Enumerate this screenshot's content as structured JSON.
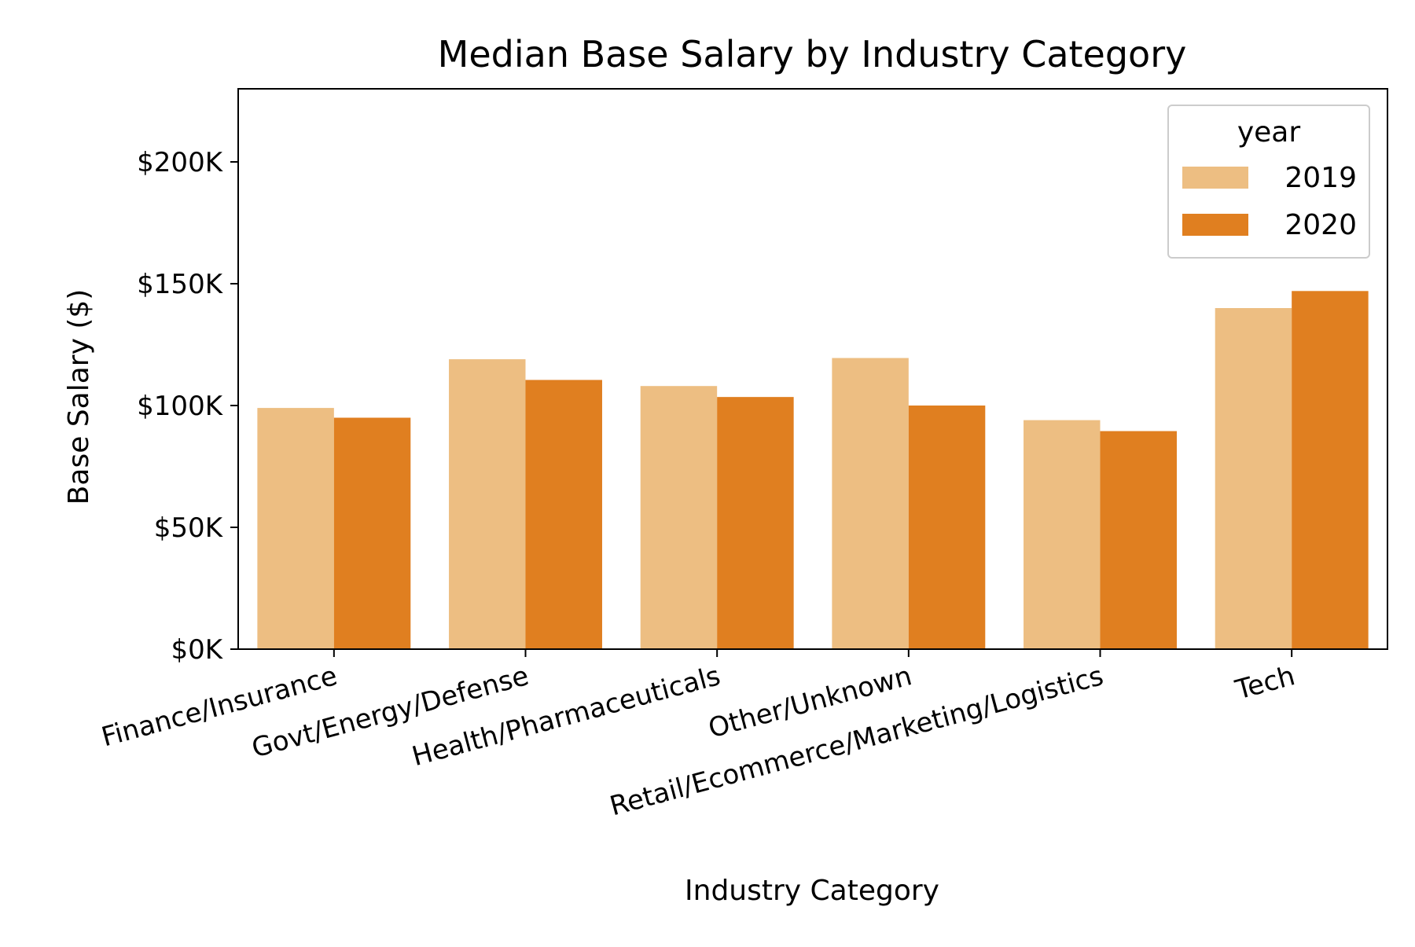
{
  "chart_data": {
    "type": "bar",
    "title": "Median Base Salary by Industry Category",
    "xlabel": "Industry Category",
    "ylabel": "Base Salary ($)",
    "categories": [
      "Finance/Insurance",
      "Govt/Energy/Defense",
      "Health/Pharmaceuticals",
      "Other/Unknown",
      "Retail/Ecommerce/Marketing/Logistics",
      "Tech"
    ],
    "series": [
      {
        "name": "2019",
        "color": "#EDBE82",
        "values": [
          99000,
          119000,
          108000,
          119500,
          94000,
          140000
        ]
      },
      {
        "name": "2020",
        "color": "#E07F20",
        "values": [
          95000,
          110500,
          103500,
          100000,
          89500,
          147000
        ]
      }
    ],
    "ylim": [
      0,
      230000
    ],
    "yticks": [
      0,
      50000,
      100000,
      150000,
      200000
    ],
    "ytick_labels": [
      "$0K",
      "$50K",
      "$100K",
      "$150K",
      "$200K"
    ],
    "legend": {
      "title": "year",
      "placement": "top-right"
    },
    "grid": false
  }
}
